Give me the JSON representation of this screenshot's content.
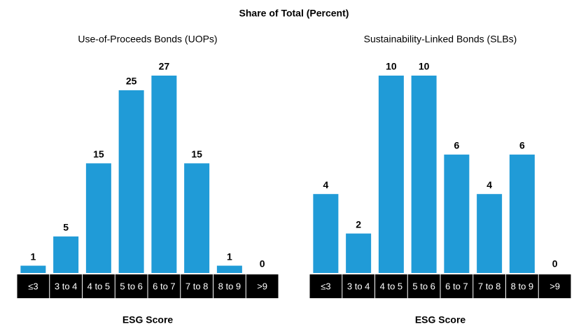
{
  "title": "Share of Total (Percent)",
  "chart_data": [
    {
      "type": "bar",
      "title": "Use-of-Proceeds Bonds (UOPs)",
      "x_label": "ESG Score",
      "categories": [
        "≤3",
        "3 to 4",
        "4 to 5",
        "5 to 6",
        "6 to 7",
        "7 to 8",
        "8 to 9",
        ">9"
      ],
      "values": [
        1,
        5,
        15,
        25,
        27,
        15,
        1,
        0
      ],
      "color": "#209bd7"
    },
    {
      "type": "bar",
      "title": "Sustainability-Linked Bonds (SLBs)",
      "x_label": "ESG Score",
      "categories": [
        "≤3",
        "3 to 4",
        "4 to 5",
        "5 to 6",
        "6 to 7",
        "7 to 8",
        "8 to 9",
        ">9"
      ],
      "values": [
        4,
        2,
        10,
        10,
        6,
        4,
        6,
        0
      ],
      "color": "#209bd7"
    }
  ]
}
